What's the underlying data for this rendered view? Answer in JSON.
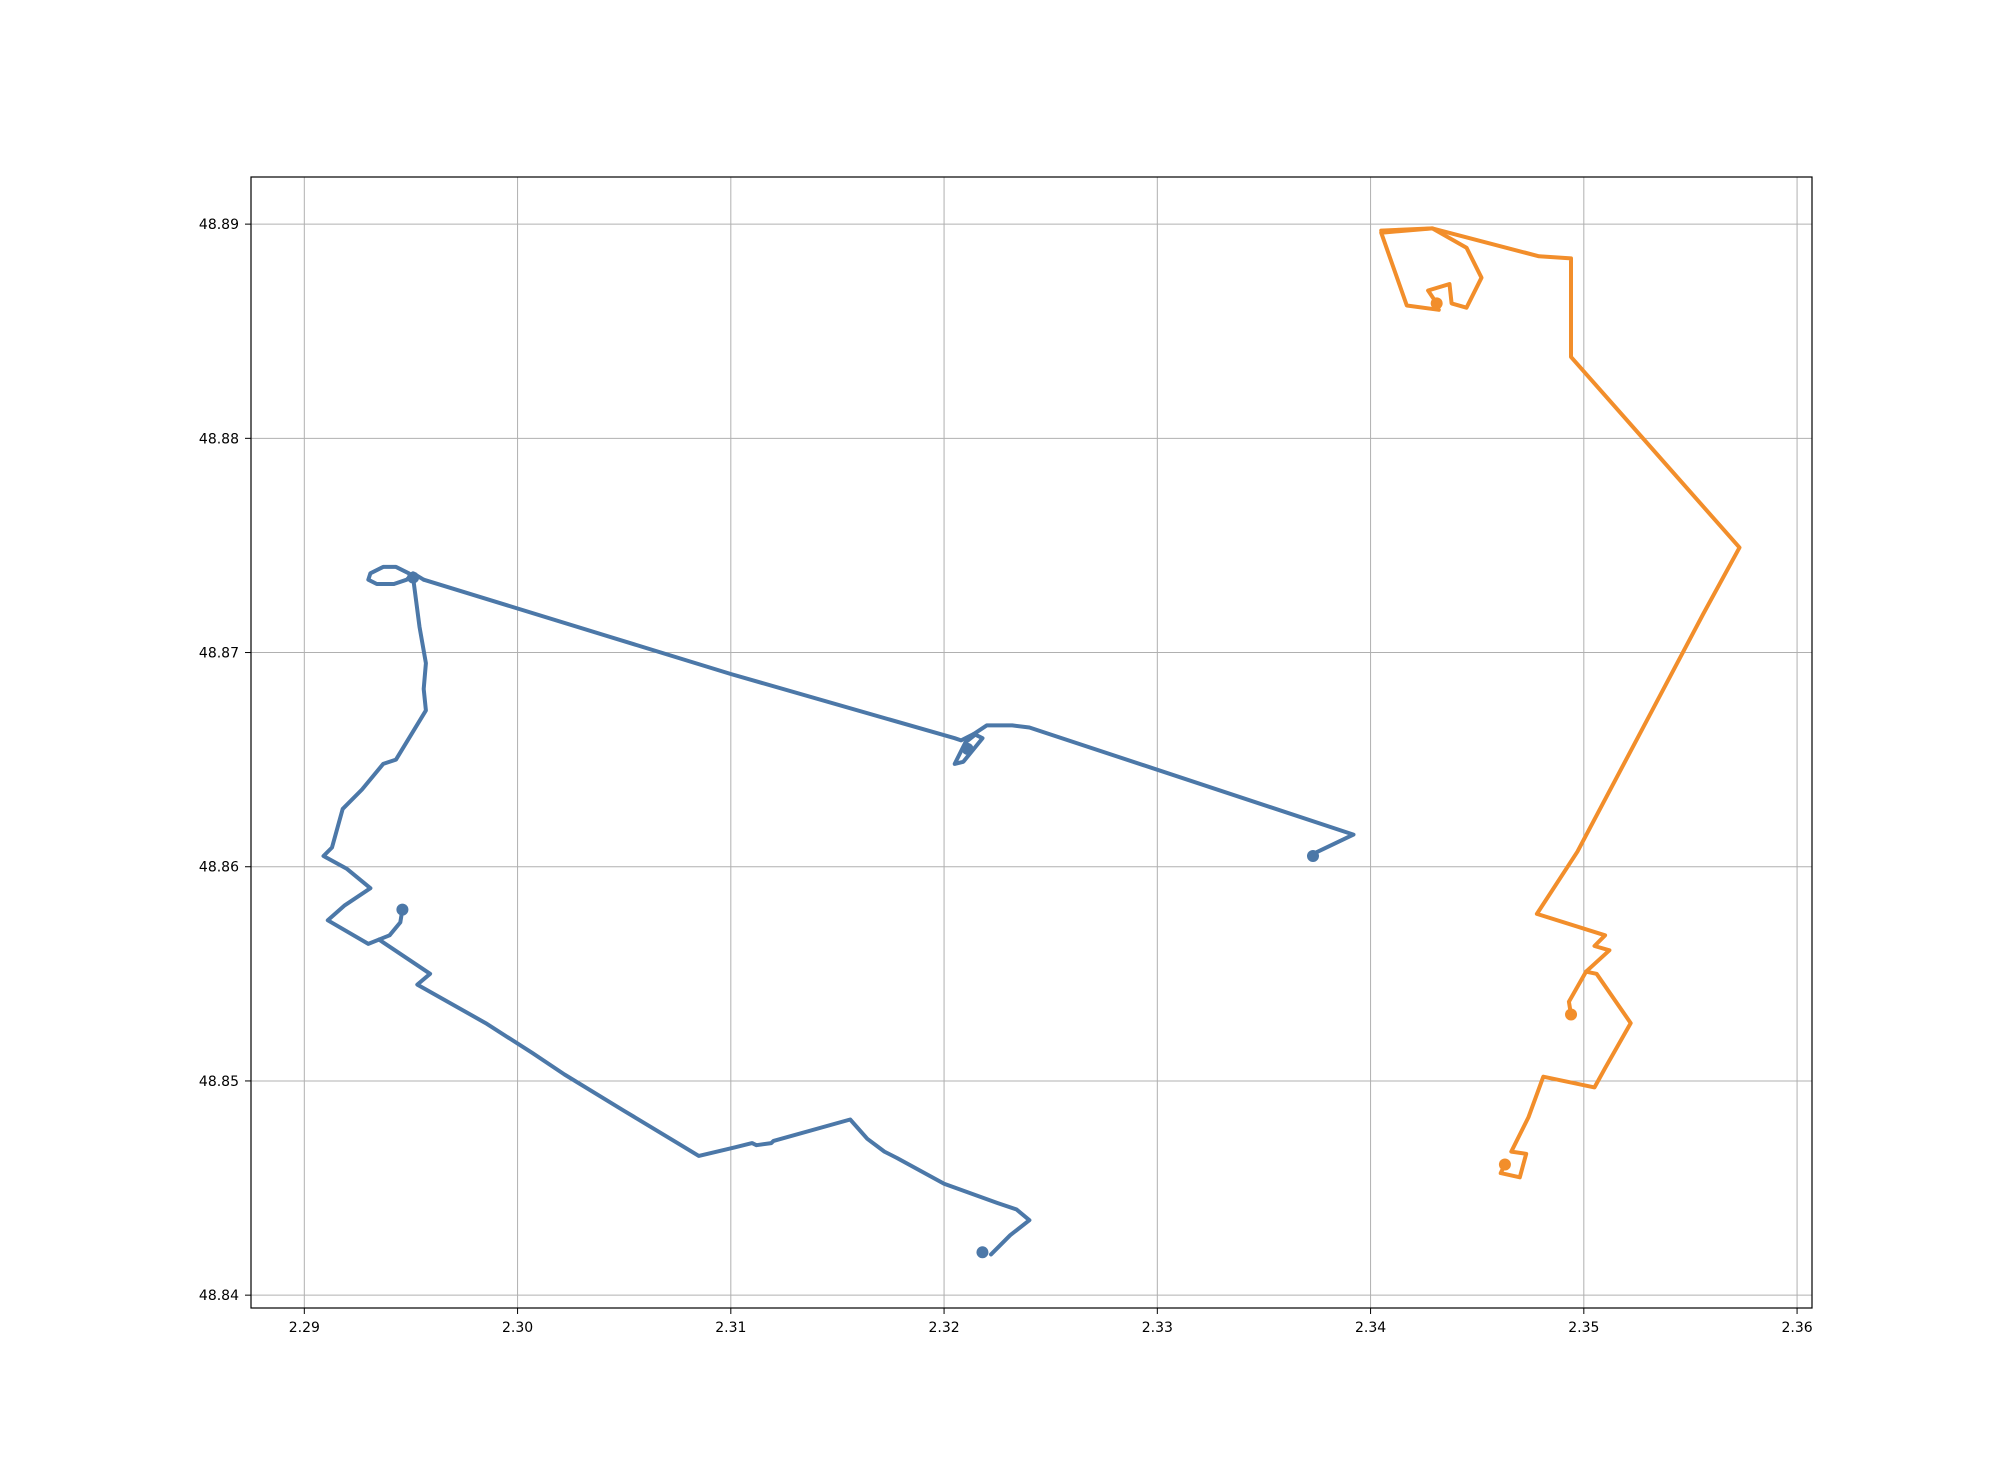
{
  "chart_data": {
    "type": "line",
    "title": "",
    "xlabel": "",
    "ylabel": "",
    "xlim": [
      2.2875,
      2.3607
    ],
    "ylim": [
      48.8394,
      48.8922
    ],
    "grid": true,
    "legend": "none",
    "x_ticks": [
      {
        "value": 2.29,
        "label": "2.29"
      },
      {
        "value": 2.3,
        "label": "2.30"
      },
      {
        "value": 2.31,
        "label": "2.31"
      },
      {
        "value": 2.32,
        "label": "2.32"
      },
      {
        "value": 2.33,
        "label": "2.33"
      },
      {
        "value": 2.34,
        "label": "2.34"
      },
      {
        "value": 2.35,
        "label": "2.35"
      },
      {
        "value": 2.36,
        "label": "2.36"
      }
    ],
    "y_ticks": [
      {
        "value": 48.84,
        "label": "48.84"
      },
      {
        "value": 48.85,
        "label": "48.85"
      },
      {
        "value": 48.86,
        "label": "48.86"
      },
      {
        "value": 48.87,
        "label": "48.87"
      },
      {
        "value": 48.88,
        "label": "48.88"
      },
      {
        "value": 48.89,
        "label": "48.89"
      }
    ],
    "series": [
      {
        "color": "#4c78a8",
        "path": [
          [
            2.3037,
            48.8736
          ],
          [
            2.304,
            48.8734
          ],
          [
            2.3031,
            48.8738
          ],
          [
            2.301,
            48.8738
          ],
          [
            2.298,
            48.8736
          ],
          [
            2.295,
            48.8735
          ],
          [
            2.2948,
            48.8735
          ],
          [
            2.2949,
            48.8722
          ],
          [
            2.2951,
            48.8707
          ],
          [
            2.2958,
            48.8692
          ],
          [
            2.2957,
            48.869
          ],
          [
            2.2955,
            48.868
          ],
          [
            2.2954,
            48.8676
          ],
          [
            2.2943,
            48.8667
          ],
          [
            2.2934,
            48.8655
          ],
          [
            2.2927,
            48.865
          ],
          [
            2.2919,
            48.8644
          ],
          [
            2.291,
            48.8634
          ],
          [
            2.2907,
            48.8627
          ],
          [
            2.2906,
            48.8623
          ],
          [
            2.2905,
            48.8616
          ],
          [
            2.2904,
            48.861
          ],
          [
            2.2912,
            48.8604
          ],
          [
            2.2925,
            48.8596
          ],
          [
            2.293,
            48.8589
          ],
          [
            2.2917,
            48.858
          ],
          [
            2.2911,
            48.8577
          ],
          [
            2.2919,
            48.8573
          ],
          [
            2.2932,
            48.8565
          ],
          [
            2.2943,
            48.8568
          ],
          [
            2.2957,
            48.8563
          ],
          [
            2.2963,
            48.855
          ],
          [
            2.2957,
            48.8545
          ],
          [
            2.2972,
            48.8537
          ],
          [
            2.2989,
            48.8527
          ],
          [
            2.301,
            48.8514
          ],
          [
            2.3025,
            48.8506
          ],
          [
            2.304,
            48.8497
          ],
          [
            2.305,
            48.849
          ],
          [
            2.307,
            48.8477
          ],
          [
            2.3086,
            48.8467
          ],
          [
            2.3092,
            48.8467
          ],
          [
            2.3098,
            48.8468
          ],
          [
            2.3102,
            48.8469
          ],
          [
            2.3112,
            48.847
          ],
          [
            2.3121,
            48.8471
          ],
          [
            2.3126,
            48.8473
          ],
          [
            2.3151,
            48.8478
          ],
          [
            2.3158,
            48.8481
          ],
          [
            2.3163,
            48.8476
          ],
          [
            2.3168,
            48.8467
          ],
          [
            2.3181,
            48.8463
          ],
          [
            2.32,
            48.8452
          ],
          [
            2.3228,
            48.8441
          ],
          [
            2.3238,
            48.8435
          ],
          [
            2.323,
            48.8425
          ],
          [
            2.3221,
            48.8418
          ]
        ],
        "markers": [
          [
            2.2951,
            48.8735
          ],
          [
            2.3211,
            48.8655
          ],
          [
            2.2946,
            48.858
          ],
          [
            2.3218,
            48.842
          ],
          [
            2.3373,
            48.8605
          ]
        ],
        "segments": [
          [
            [
              2.2951,
              48.8735
            ],
            [
              2.2949,
              48.8737
            ],
            [
              2.2943,
              48.874
            ],
            [
              2.2937,
              48.874
            ],
            [
              2.2931,
              48.8737
            ],
            [
              2.293,
              48.8734
            ],
            [
              2.2934,
              48.8732
            ],
            [
              2.2942,
              48.8732
            ],
            [
              2.2948,
              48.8734
            ],
            [
              2.2951,
              48.8737
            ],
            [
              2.2956,
              48.8734
            ]
          ],
          [
            [
              2.2956,
              48.8734
            ],
            [
              2.31,
              48.869
            ],
            [
              2.3205,
              48.866
            ],
            [
              2.3208,
              48.8659
            ],
            [
              2.3214,
              48.8662
            ],
            [
              2.322,
              48.8666
            ],
            [
              2.3232,
              48.8666
            ],
            [
              2.324,
              48.8665
            ],
            [
              2.3392,
              48.8615
            ],
            [
              2.3373,
              48.8606
            ]
          ],
          [
            [
              2.3214,
              48.8662
            ],
            [
              2.3218,
              48.866
            ],
            [
              2.3209,
              48.8649
            ],
            [
              2.3205,
              48.8648
            ],
            [
              2.321,
              48.8658
            ],
            [
              2.3215,
              48.8662
            ]
          ],
          [
            [
              2.2951,
              48.8735
            ],
            [
              2.2954,
              48.8712
            ],
            [
              2.2957,
              48.8695
            ],
            [
              2.2956,
              48.8683
            ],
            [
              2.2957,
              48.8673
            ],
            [
              2.2943,
              48.865
            ],
            [
              2.2937,
              48.8648
            ],
            [
              2.2927,
              48.8636
            ],
            [
              2.2919,
              48.8628
            ],
            [
              2.2918,
              48.8627
            ],
            [
              2.2913,
              48.8609
            ],
            [
              2.2909,
              48.8605
            ],
            [
              2.292,
              48.8599
            ],
            [
              2.2931,
              48.859
            ],
            [
              2.2919,
              48.8582
            ],
            [
              2.2911,
              48.8575
            ],
            [
              2.293,
              48.8564
            ],
            [
              2.294,
              48.8568
            ],
            [
              2.2945,
              48.8574
            ],
            [
              2.2946,
              48.858
            ]
          ],
          [
            [
              2.2935,
              48.8566
            ],
            [
              2.2959,
              48.855
            ],
            [
              2.2953,
              48.8545
            ],
            [
              2.2985,
              48.8527
            ],
            [
              2.3007,
              48.8513
            ],
            [
              2.3022,
              48.8503
            ],
            [
              2.305,
              48.8486
            ],
            [
              2.3085,
              48.8465
            ],
            [
              2.3102,
              48.8469
            ],
            [
              2.311,
              48.8471
            ],
            [
              2.3112,
              48.847
            ],
            [
              2.3119,
              48.8471
            ],
            [
              2.312,
              48.8472
            ],
            [
              2.3156,
              48.8482
            ],
            [
              2.3164,
              48.8473
            ],
            [
              2.3172,
              48.8467
            ],
            [
              2.3178,
              48.8464
            ],
            [
              2.32,
              48.8452
            ],
            [
              2.3225,
              48.8443
            ],
            [
              2.3234,
              48.844
            ],
            [
              2.324,
              48.8435
            ],
            [
              2.3231,
              48.8428
            ],
            [
              2.3222,
              48.8419
            ]
          ]
        ]
      },
      {
        "color": "#f28e2b",
        "markers": [
          [
            2.3431,
            48.8863
          ],
          [
            2.3494,
            48.8531
          ],
          [
            2.3463,
            48.8461
          ]
        ],
        "segments": [
          [
            [
              2.3431,
              48.8863
            ],
            [
              2.3427,
              48.8869
            ],
            [
              2.3437,
              48.8872
            ],
            [
              2.3438,
              48.8863
            ],
            [
              2.3445,
              48.8861
            ],
            [
              2.3452,
              48.8875
            ],
            [
              2.3445,
              48.8889
            ],
            [
              2.3429,
              48.8898
            ],
            [
              2.3405,
              48.8896
            ],
            [
              2.3417,
              48.8862
            ],
            [
              2.3432,
              48.886
            ]
          ],
          [
            [
              2.3405,
              48.8897
            ],
            [
              2.3429,
              48.8898
            ],
            [
              2.3479,
              48.8885
            ],
            [
              2.3494,
              48.8884
            ],
            [
              2.3494,
              48.8838
            ],
            [
              2.3573,
              48.8749
            ],
            [
              2.3556,
              48.8718
            ],
            [
              2.3497,
              48.8607
            ],
            [
              2.3478,
              48.8578
            ],
            [
              2.351,
              48.8568
            ],
            [
              2.3505,
              48.8563
            ],
            [
              2.3512,
              48.8561
            ],
            [
              2.3501,
              48.8551
            ],
            [
              2.3493,
              48.8537
            ],
            [
              2.3494,
              48.8531
            ]
          ],
          [
            [
              2.3501,
              48.8551
            ],
            [
              2.3506,
              48.855
            ],
            [
              2.3522,
              48.8527
            ],
            [
              2.351,
              48.8506
            ],
            [
              2.3505,
              48.8497
            ],
            [
              2.3481,
              48.8502
            ],
            [
              2.3474,
              48.8483
            ],
            [
              2.3466,
              48.8467
            ],
            [
              2.3473,
              48.8466
            ],
            [
              2.347,
              48.8455
            ],
            [
              2.3461,
              48.8457
            ],
            [
              2.3463,
              48.8461
            ]
          ]
        ]
      }
    ]
  }
}
